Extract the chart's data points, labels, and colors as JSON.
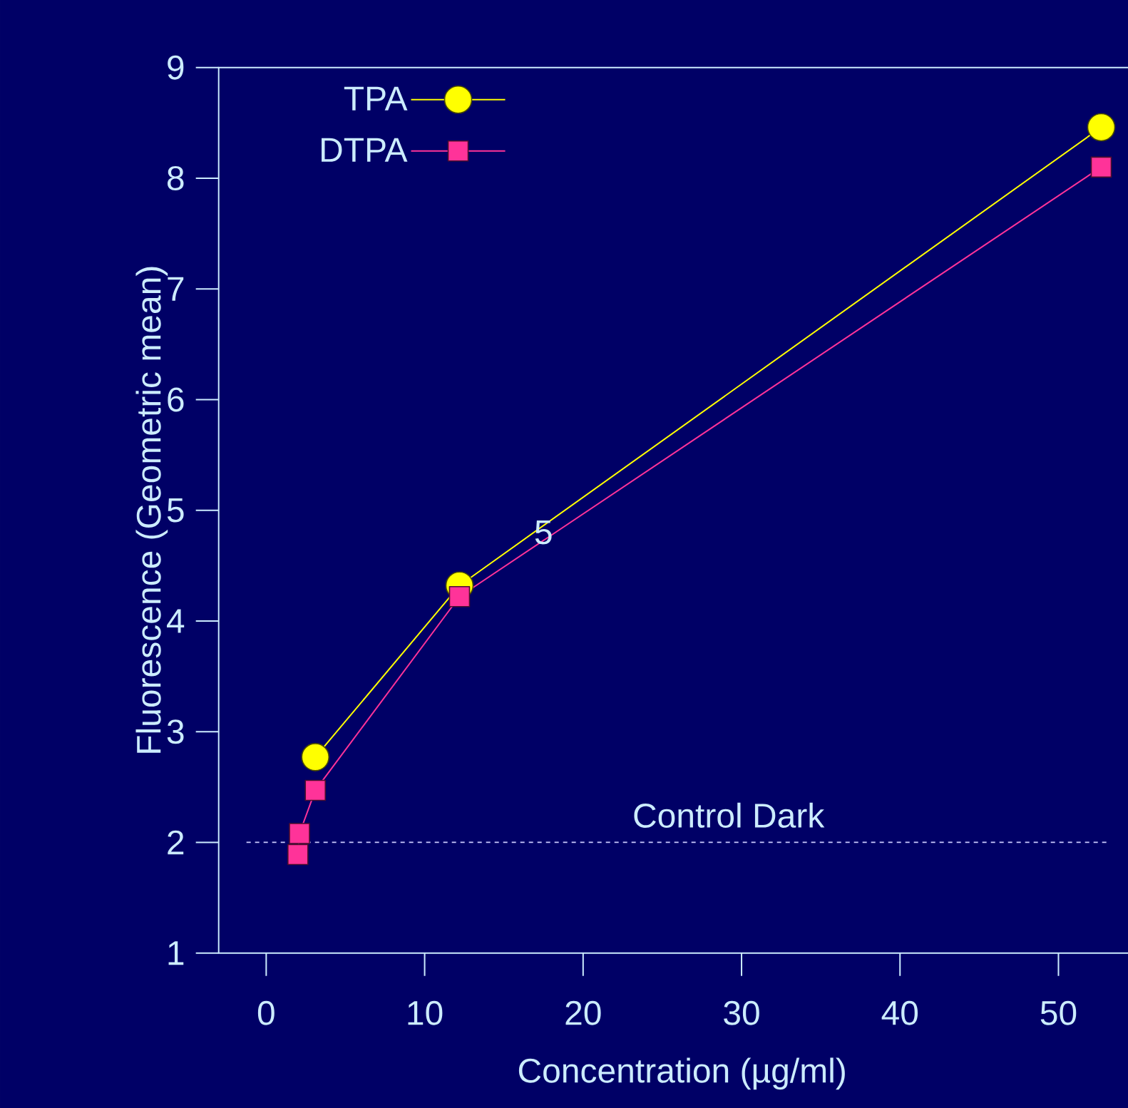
{
  "chart_data": {
    "type": "line",
    "xlabel": "Concentration (µg/ml)",
    "ylabel": "Fluorescence (Geometric mean)",
    "xlim": [
      -3,
      55.5
    ],
    "ylim": [
      1,
      9
    ],
    "xticks": [
      0,
      10,
      20,
      30,
      40,
      50
    ],
    "yticks": [
      1,
      2,
      3,
      4,
      5,
      6,
      7,
      8,
      9
    ],
    "grid": false,
    "legend": "top left",
    "line_style": "solid",
    "series": [
      {
        "name": "TPA",
        "color": "#ffff00",
        "marker": "circle",
        "x": [
          3.1,
          12.2,
          52.7
        ],
        "values": [
          2.77,
          4.32,
          8.46
        ]
      },
      {
        "name": "DTPA",
        "color": "#ff3399",
        "marker": "square",
        "x": [
          2.0,
          2.1,
          3.1,
          12.2,
          52.7
        ],
        "values": [
          1.89,
          2.08,
          2.47,
          4.22,
          8.1
        ]
      }
    ],
    "ref_lines": [
      {
        "axis": "y",
        "value": 2,
        "label": "Control Dark",
        "color": "#ccccff",
        "line_style": "dashed"
      }
    ],
    "annotations": [
      {
        "text": "5",
        "x": 17.5,
        "y": 4.8
      }
    ]
  }
}
